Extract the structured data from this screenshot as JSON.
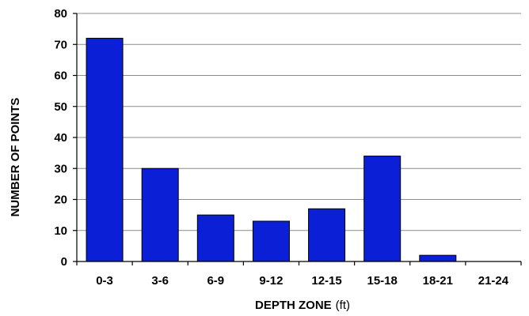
{
  "chart_data": {
    "type": "bar",
    "categories": [
      "0-3",
      "3-6",
      "6-9",
      "9-12",
      "12-15",
      "15-18",
      "18-21",
      "21-24"
    ],
    "values": [
      72,
      30,
      15,
      13,
      17,
      34,
      2,
      0
    ],
    "xlabel": "DEPTH ZONE",
    "xlabel_unit": "(ft)",
    "ylabel": "NUMBER OF POINTS",
    "ylim": [
      0,
      80
    ],
    "yticks": [
      0,
      10,
      20,
      30,
      40,
      50,
      60,
      70,
      80
    ],
    "grid": true,
    "legend": "none",
    "bar_color": "#0a1fd6",
    "bar_edge_color": "#000000"
  }
}
